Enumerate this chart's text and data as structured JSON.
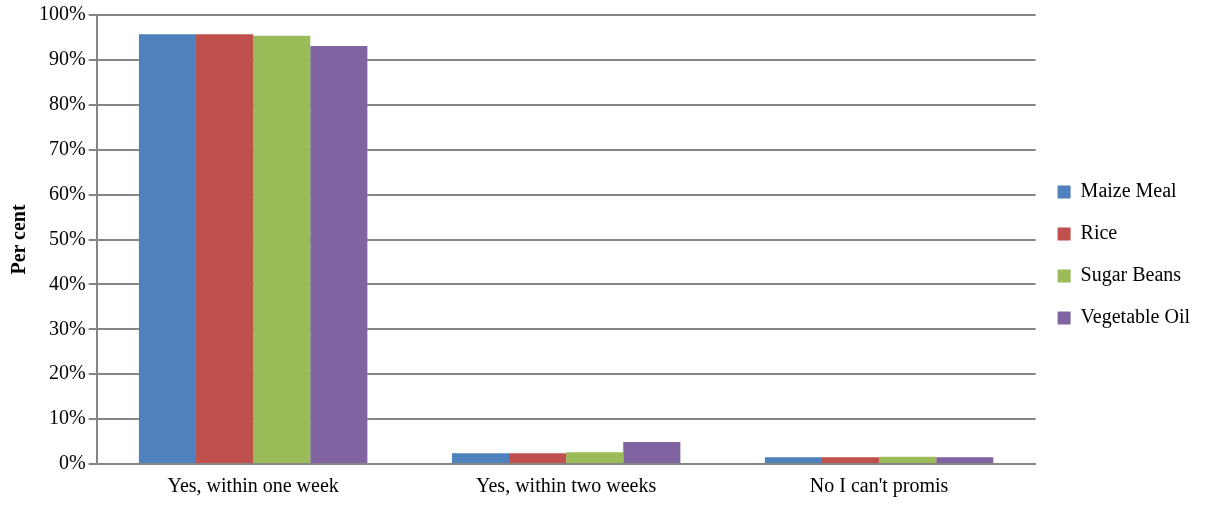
{
  "chart_data": {
    "type": "bar",
    "ylabel": "Per cent",
    "categories": [
      "Yes, within one week",
      "Yes, within two weeks",
      "No I can't promis"
    ],
    "series": [
      {
        "name": "Maize Meal",
        "color": "#4f81bd",
        "values": [
          95.7,
          2.4,
          1.5
        ]
      },
      {
        "name": "Rice",
        "color": "#c0504d",
        "values": [
          95.7,
          2.4,
          1.5
        ]
      },
      {
        "name": "Sugar Beans",
        "color": "#9bbb59",
        "values": [
          95.4,
          2.6,
          1.6
        ]
      },
      {
        "name": "Vegetable Oil",
        "color": "#8064a2",
        "values": [
          93.1,
          4.9,
          1.5
        ]
      }
    ],
    "ylim": [
      0,
      100
    ],
    "yticks": [
      {
        "value": 0,
        "label": "0%"
      },
      {
        "value": 10,
        "label": "10%"
      },
      {
        "value": 20,
        "label": "20%"
      },
      {
        "value": 30,
        "label": "30%"
      },
      {
        "value": 40,
        "label": "40%"
      },
      {
        "value": 50,
        "label": "50%"
      },
      {
        "value": 60,
        "label": "60%"
      },
      {
        "value": 70,
        "label": "70%"
      },
      {
        "value": 80,
        "label": "80%"
      },
      {
        "value": 90,
        "label": "90%"
      },
      {
        "value": 100,
        "label": "100%"
      }
    ],
    "grid": "y",
    "legend": "right"
  }
}
